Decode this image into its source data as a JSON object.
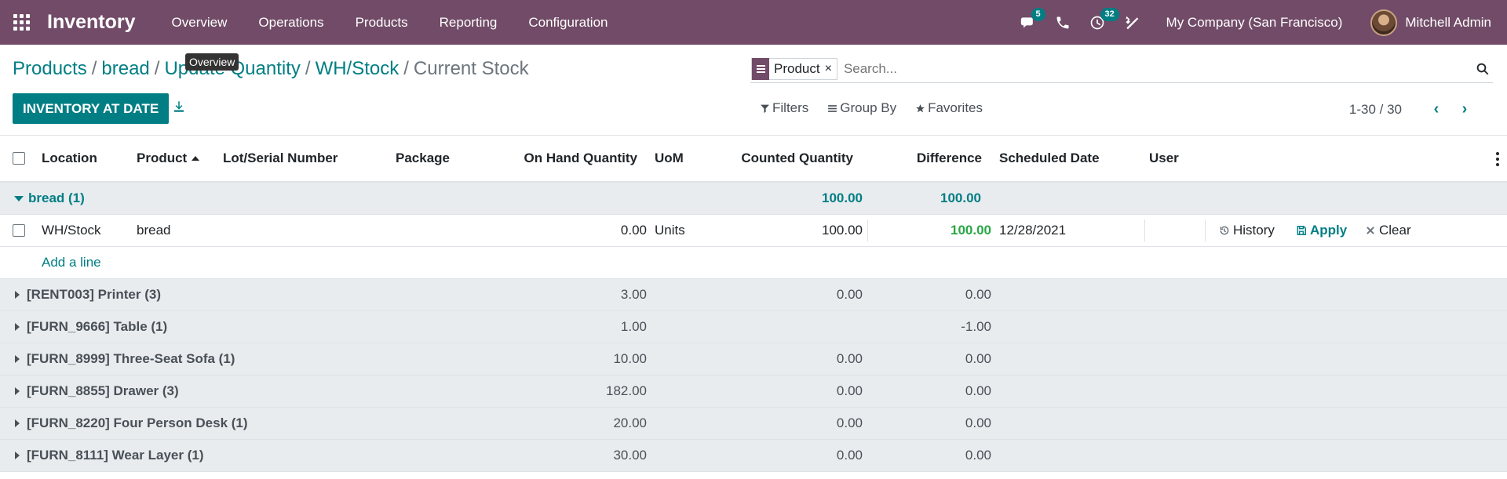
{
  "navbar": {
    "app_name": "Inventory",
    "menu": [
      "Overview",
      "Operations",
      "Products",
      "Reporting",
      "Configuration"
    ],
    "messages_badge": "5",
    "activities_badge": "32",
    "company": "My Company (San Francisco)",
    "user": "Mitchell Admin",
    "brand_color": "#714B67"
  },
  "tooltip": "Overview",
  "breadcrumb": {
    "items": [
      "Products",
      "bread",
      "Update Quantity",
      "WH/Stock"
    ],
    "current": "Current Stock"
  },
  "actions": {
    "inventory_at_date": "INVENTORY AT DATE"
  },
  "search": {
    "facet_label": "Product",
    "facet_remove": "×",
    "placeholder": "Search..."
  },
  "filters": {
    "filters": "Filters",
    "group_by": "Group By",
    "favorites": "Favorites"
  },
  "pager": {
    "value": "1-30 / 30",
    "prev": "‹",
    "next": "›"
  },
  "table": {
    "headers": {
      "location": "Location",
      "product": "Product",
      "lot": "Lot/Serial Number",
      "package": "Package",
      "on_hand": "On Hand Quantity",
      "uom": "UoM",
      "counted": "Counted Quantity",
      "difference": "Difference",
      "scheduled": "Scheduled Date",
      "user": "User"
    },
    "open_group": {
      "label": "bread (1)",
      "counted": "100.00",
      "difference": "100.00"
    },
    "record": {
      "location": "WH/Stock",
      "product": "bread",
      "on_hand": "0.00",
      "uom": "Units",
      "counted": "100.00",
      "difference": "100.00",
      "scheduled": "12/28/2021",
      "history": "History",
      "apply": "Apply",
      "clear": "Clear"
    },
    "add_line": "Add a line",
    "groups": [
      {
        "label": "[RENT003] Printer (3)",
        "on_hand": "3.00",
        "counted": "0.00",
        "difference": "0.00"
      },
      {
        "label": "[FURN_9666] Table (1)",
        "on_hand": "1.00",
        "counted": "",
        "difference": "-1.00"
      },
      {
        "label": "[FURN_8999] Three-Seat Sofa (1)",
        "on_hand": "10.00",
        "counted": "0.00",
        "difference": "0.00"
      },
      {
        "label": "[FURN_8855] Drawer (3)",
        "on_hand": "182.00",
        "counted": "0.00",
        "difference": "0.00"
      },
      {
        "label": "[FURN_8220] Four Person Desk (1)",
        "on_hand": "20.00",
        "counted": "0.00",
        "difference": "0.00"
      },
      {
        "label": "[FURN_8111] Wear Layer (1)",
        "on_hand": "30.00",
        "counted": "0.00",
        "difference": "0.00"
      }
    ]
  }
}
